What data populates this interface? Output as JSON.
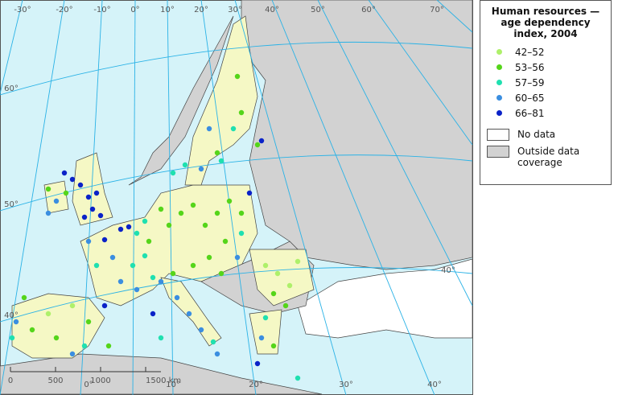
{
  "legend": {
    "title": "Human resources — age dependency index, 2004",
    "classes": [
      {
        "label": "42–52",
        "color": "#aef06a"
      },
      {
        "label": "53–56",
        "color": "#55d51a"
      },
      {
        "label": "57–59",
        "color": "#1fe0b0"
      },
      {
        "label": "60–65",
        "color": "#3b8ee0"
      },
      {
        "label": "66–81",
        "color": "#0a22c8"
      }
    ],
    "no_data": "No data",
    "outside": "Outside data coverage"
  },
  "graticule": {
    "top": [
      "-30°",
      "-20°",
      "-10°",
      "0°",
      "10°",
      "20°",
      "30°",
      "40°",
      "50°",
      "60°",
      "70°"
    ],
    "left": [
      "60°",
      "50°",
      "40°"
    ],
    "bottom": [
      "0°",
      "10°",
      "20°",
      "30°",
      "40°"
    ],
    "right": [
      "40°"
    ]
  },
  "scale_bar": {
    "labels": [
      "0",
      "500",
      "1000",
      "1500 km"
    ]
  }
}
